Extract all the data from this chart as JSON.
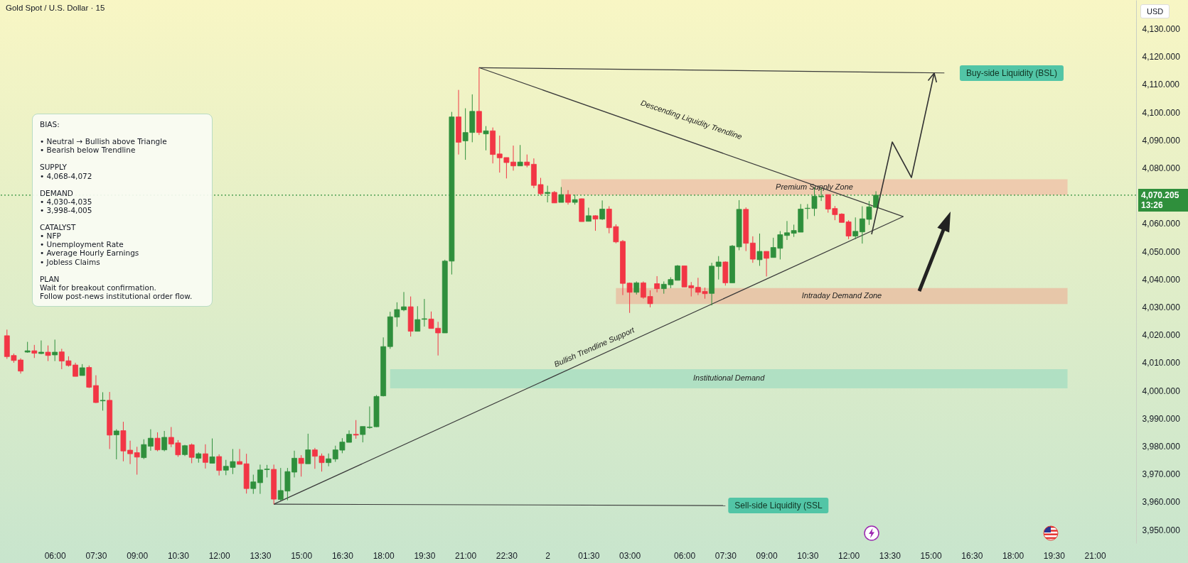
{
  "chart_data": {
    "type": "candlestick",
    "title": "Gold Spot / U.S. Dollar · 15",
    "ylabel": "USD",
    "categories": [
      null,
      null,
      null,
      null,
      null,
      null,
      null,
      "06:00",
      null,
      null,
      null,
      null,
      null,
      "07:30",
      null,
      null,
      null,
      null,
      null,
      "09:00",
      null,
      null,
      null,
      null,
      null,
      "10:30",
      null,
      null,
      null,
      null,
      null,
      "12:00",
      null,
      null,
      null,
      null,
      null,
      "13:30",
      null,
      null,
      null,
      null,
      null,
      "15:00",
      null,
      null,
      null,
      null,
      null,
      "16:30",
      null,
      null,
      null,
      null,
      null,
      "18:00",
      null,
      null,
      null,
      null,
      null,
      "19:30",
      null,
      null,
      null,
      null,
      null,
      "21:00",
      null,
      null,
      null,
      null,
      null,
      "22:30",
      null,
      null,
      null,
      null,
      null,
      "2",
      null,
      null,
      null,
      null,
      null,
      "01:30",
      null,
      null,
      null,
      null,
      null,
      "03:00",
      null,
      null,
      null,
      null,
      null,
      null,
      null,
      "06:00",
      null,
      null,
      null,
      null,
      null,
      "07:30",
      null,
      null,
      null,
      null,
      null,
      "09:00",
      null,
      null,
      null,
      null,
      null,
      "10:30",
      null,
      null,
      null,
      null,
      null,
      "12:00",
      null,
      null,
      null,
      null,
      null,
      "13:30",
      null,
      null,
      null,
      null,
      null,
      "15:00",
      null,
      null,
      null,
      null,
      null,
      "16:30",
      null,
      null,
      null,
      null,
      null,
      "18:00",
      null,
      null,
      null,
      null,
      null,
      "19:30",
      null,
      null,
      null,
      null,
      null,
      "21:00",
      null,
      null,
      null,
      null,
      null
    ],
    "ohlc": [
      [
        4019.7,
        4021.9,
        4011.4,
        4012.2
      ],
      [
        4012.6,
        4013.3,
        4010.0,
        4010.8
      ],
      [
        4011.0,
        4011.6,
        4006.1,
        4007.0
      ],
      [
        4013.8,
        4017.5,
        4013.6,
        4014.3
      ],
      [
        4014.3,
        4016.4,
        4011.7,
        4013.4
      ],
      [
        4013.3,
        4018.0,
        4013.1,
        4013.8
      ],
      [
        4013.8,
        4016.2,
        4010.6,
        4012.6
      ],
      [
        4012.8,
        4018.3,
        4010.6,
        4013.8
      ],
      [
        4013.9,
        4015.0,
        4007.7,
        4010.6
      ],
      [
        4010.7,
        4012.3,
        4008.6,
        4009.0
      ],
      [
        4009.2,
        4010.0,
        4005.1,
        4005.1
      ],
      [
        4005.4,
        4009.5,
        4005.4,
        4008.2
      ],
      [
        4008.3,
        4009.0,
        4000.9,
        4001.2
      ],
      [
        4001.8,
        4005.5,
        3995.5,
        3995.7
      ],
      [
        3996.3,
        3999.4,
        3992.8,
        3996.5
      ],
      [
        3996.5,
        3999.5,
        3979.0,
        3984.0
      ],
      [
        3984.1,
        3986.1,
        3975.3,
        3985.5
      ],
      [
        3985.6,
        3988.8,
        3974.6,
        3978.3
      ],
      [
        3978.6,
        3982.0,
        3973.6,
        3977.3
      ],
      [
        3977.7,
        3979.8,
        3969.8,
        3976.1
      ],
      [
        3975.9,
        3982.5,
        3975.4,
        3980.6
      ],
      [
        3980.0,
        3986.1,
        3978.4,
        3982.9
      ],
      [
        3982.9,
        3985.0,
        3978.2,
        3978.7
      ],
      [
        3978.7,
        3985.5,
        3978.2,
        3983.2
      ],
      [
        3983.2,
        3986.9,
        3979.7,
        3980.8
      ],
      [
        3981.2,
        3982.2,
        3976.2,
        3976.9
      ],
      [
        3977.0,
        3980.5,
        3976.5,
        3980.2
      ],
      [
        3980.5,
        3981.0,
        3973.9,
        3976.0
      ],
      [
        3975.7,
        3977.8,
        3974.1,
        3977.3
      ],
      [
        3977.3,
        3980.7,
        3972.0,
        3974.2
      ],
      [
        3973.9,
        3982.8,
        3973.9,
        3976.2
      ],
      [
        3976.3,
        3977.1,
        3969.5,
        3971.3
      ],
      [
        3971.4,
        3975.1,
        3969.6,
        3972.8
      ],
      [
        3972.4,
        3979.0,
        3970.0,
        3974.5
      ],
      [
        3974.5,
        3979.0,
        3973.5,
        3973.5
      ],
      [
        3973.7,
        3977.3,
        3963.0,
        3964.8
      ],
      [
        3964.8,
        3969.8,
        3962.9,
        3967.2
      ],
      [
        3966.9,
        3973.4,
        3962.9,
        3971.5
      ],
      [
        3971.6,
        3973.3,
        3968.8,
        3971.8
      ],
      [
        3971.7,
        3973.4,
        3959.2,
        3961.0
      ],
      [
        3960.9,
        3972.2,
        3960.5,
        3964.1
      ],
      [
        3963.9,
        3972.2,
        3960.6,
        3970.9
      ],
      [
        3970.7,
        3978.4,
        3968.8,
        3975.7
      ],
      [
        3975.7,
        3976.8,
        3969.1,
        3973.8
      ],
      [
        3973.7,
        3984.5,
        3973.7,
        3978.7
      ],
      [
        3978.7,
        3979.4,
        3971.9,
        3976.4
      ],
      [
        3976.5,
        3977.4,
        3970.9,
        3974.1
      ],
      [
        3974.1,
        3977.4,
        3972.8,
        3975.5
      ],
      [
        3975.4,
        3980.2,
        3974.4,
        3978.7
      ],
      [
        3978.6,
        3982.9,
        3977.5,
        3981.5
      ],
      [
        3981.4,
        3985.7,
        3981.4,
        3984.3
      ],
      [
        3984.3,
        3989.4,
        3982.7,
        3984.0
      ],
      [
        3984.2,
        3987.1,
        3981.4,
        3987.1
      ],
      [
        3986.7,
        3994.3,
        3986.3,
        3986.9
      ],
      [
        3987.0,
        3998.4,
        3986.9,
        3997.9
      ],
      [
        3998.1,
        4019.1,
        3997.9,
        4015.8
      ],
      [
        4015.8,
        4028.3,
        4015.0,
        4026.5
      ],
      [
        4026.4,
        4031.7,
        4022.9,
        4029.1
      ],
      [
        4029.0,
        4035.4,
        4028.5,
        4030.1
      ],
      [
        4030.1,
        4033.8,
        4019.4,
        4021.3
      ],
      [
        4021.3,
        4030.3,
        4021.3,
        4025.5
      ],
      [
        4025.6,
        4032.9,
        4023.0,
        4025.8
      ],
      [
        4025.7,
        4028.4,
        4022.3,
        4022.3
      ],
      [
        4022.4,
        4024.7,
        4012.6,
        4020.7
      ],
      [
        4020.7,
        4047.0,
        4020.7,
        4046.5
      ],
      [
        4046.5,
        4100.1,
        4041.7,
        4098.3
      ],
      [
        4098.3,
        4108.0,
        4084.8,
        4089.2
      ],
      [
        4089.7,
        4101.4,
        4082.9,
        4092.7
      ],
      [
        4092.7,
        4106.4,
        4089.2,
        4100.3
      ],
      [
        4100.3,
        4116.0,
        4091.8,
        4092.7
      ],
      [
        4092.2,
        4095.0,
        4086.3,
        4093.3
      ],
      [
        4093.3,
        4094.5,
        4081.6,
        4084.8
      ],
      [
        4085.0,
        4091.6,
        4078.3,
        4083.6
      ],
      [
        4083.7,
        4083.7,
        4076.2,
        4081.9
      ],
      [
        4082.1,
        4088.0,
        4079.0,
        4080.7
      ],
      [
        4080.7,
        4088.2,
        4080.7,
        4082.1
      ],
      [
        4082.1,
        4084.8,
        4080.2,
        4080.9
      ],
      [
        4081.3,
        4083.4,
        4072.7,
        4073.7
      ],
      [
        4074.0,
        4076.4,
        4070.1,
        4070.7
      ],
      [
        4070.8,
        4073.6,
        4067.6,
        4071.2
      ],
      [
        4071.2,
        4071.7,
        4067.4,
        4067.4
      ],
      [
        4067.6,
        4073.1,
        4067.6,
        4070.4
      ],
      [
        4070.4,
        4072.0,
        4066.8,
        4067.6
      ],
      [
        4067.6,
        4070.4,
        4066.8,
        4068.6
      ],
      [
        4068.9,
        4069.0,
        4060.7,
        4060.7
      ],
      [
        4060.8,
        4065.7,
        4060.8,
        4062.8
      ],
      [
        4062.8,
        4063.0,
        4057.4,
        4061.6
      ],
      [
        4061.6,
        4068.3,
        4061.3,
        4065.2
      ],
      [
        4065.2,
        4066.2,
        4056.5,
        4058.5
      ],
      [
        4058.9,
        4059.7,
        4052.9,
        4053.4
      ],
      [
        4053.6,
        4054.1,
        4034.3,
        4038.5
      ],
      [
        4038.6,
        4038.8,
        4027.9,
        4035.3
      ],
      [
        4035.3,
        4039.2,
        4034.5,
        4038.7
      ],
      [
        4038.7,
        4039.2,
        4033.0,
        4033.5
      ],
      [
        4033.8,
        4036.0,
        4029.9,
        4031.2
      ],
      [
        4038.4,
        4041.1,
        4035.3,
        4036.6
      ],
      [
        4036.6,
        4039.2,
        4034.8,
        4038.2
      ],
      [
        4038.0,
        4040.7,
        4036.8,
        4039.9
      ],
      [
        4039.6,
        4045.1,
        4039.6,
        4044.8
      ],
      [
        4044.8,
        4044.8,
        4037.2,
        4037.2
      ],
      [
        4037.7,
        4039.0,
        4033.8,
        4036.9
      ],
      [
        4037.1,
        4040.5,
        4034.3,
        4035.3
      ],
      [
        4035.6,
        4037.0,
        4033.0,
        4034.8
      ],
      [
        4034.9,
        4045.9,
        4030.6,
        4044.7
      ],
      [
        4044.6,
        4048.3,
        4039.9,
        4046.2
      ],
      [
        4046.2,
        4046.4,
        4037.7,
        4038.7
      ],
      [
        4038.7,
        4052.3,
        4038.7,
        4051.9
      ],
      [
        4051.6,
        4068.4,
        4050.4,
        4065.1
      ],
      [
        4065.1,
        4065.8,
        4050.1,
        4052.9
      ],
      [
        4053.0,
        4055.4,
        4045.9,
        4047.2
      ],
      [
        4047.0,
        4056.4,
        4044.8,
        4050.0
      ],
      [
        4050.0,
        4050.0,
        4041.0,
        4047.5
      ],
      [
        4047.8,
        4054.9,
        4047.8,
        4051.4
      ],
      [
        4051.1,
        4057.3,
        4047.1,
        4056.0
      ],
      [
        4055.7,
        4060.9,
        4054.1,
        4056.7
      ],
      [
        4056.5,
        4059.6,
        4055.2,
        4057.5
      ],
      [
        4056.9,
        4067.0,
        4056.9,
        4065.2
      ],
      [
        4065.4,
        4067.0,
        4061.6,
        4065.5
      ],
      [
        4065.4,
        4073.0,
        4062.7,
        4069.8
      ],
      [
        4069.6,
        4072.9,
        4068.1,
        4069.8
      ],
      [
        4070.4,
        4070.4,
        4063.9,
        4065.2
      ],
      [
        4065.4,
        4066.3,
        4061.2,
        4063.2
      ],
      [
        4063.4,
        4063.7,
        4060.4,
        4060.4
      ],
      [
        4060.6,
        4061.2,
        4054.4,
        4055.5
      ],
      [
        4055.5,
        4062.2,
        4054.4,
        4057.2
      ],
      [
        4057.0,
        4066.2,
        4052.8,
        4061.7
      ],
      [
        4061.5,
        4068.1,
        4059.5,
        4066.0
      ],
      [
        4065.8,
        4071.6,
        4065.8,
        4070.2
      ],
      null,
      null,
      null,
      null,
      null,
      null,
      null,
      null,
      null,
      null,
      null,
      null,
      null,
      null,
      null,
      null,
      null,
      null,
      null,
      null,
      null,
      null,
      null,
      null,
      null,
      null,
      null,
      null,
      null,
      null,
      null,
      null,
      null,
      null,
      null,
      null,
      null
    ],
    "colors": [
      "#f23645",
      "#f23645",
      "#f23645",
      "#2f8f3c",
      "#f23645",
      "#2f8f3c",
      "#f23645",
      "#2f8f3c",
      "#f23645",
      "#f23645",
      "#f23645",
      "#2f8f3c",
      "#f23645",
      "#f23645",
      "#2f8f3c",
      "#f23645",
      "#2f8f3c",
      "#f23645",
      "#f23645",
      "#f23645",
      "#2f8f3c",
      "#2f8f3c",
      "#f23645",
      "#2f8f3c",
      "#f23645",
      "#f23645",
      "#2f8f3c",
      "#f23645",
      "#2f8f3c",
      "#f23645",
      "#2f8f3c",
      "#f23645",
      "#2f8f3c",
      "#2f8f3c",
      "#f23645",
      "#f23645",
      "#2f8f3c",
      "#2f8f3c",
      "#2f8f3c",
      "#f23645",
      "#2f8f3c",
      "#2f8f3c",
      "#2f8f3c",
      "#f23645",
      "#2f8f3c",
      "#f23645",
      "#f23645",
      "#2f8f3c",
      "#2f8f3c",
      "#2f8f3c",
      "#2f8f3c",
      "#f23645",
      "#2f8f3c",
      "#2f8f3c",
      "#2f8f3c",
      "#2f8f3c",
      "#2f8f3c",
      "#2f8f3c",
      "#2f8f3c",
      "#f23645",
      "#2f8f3c",
      "#2f8f3c",
      "#f23645",
      "#f23645",
      "#2f8f3c",
      "#2f8f3c",
      "#f23645",
      "#2f8f3c",
      "#2f8f3c",
      "#f23645",
      "#2f8f3c",
      "#f23645",
      "#f23645",
      "#f23645",
      "#f23645",
      "#2f8f3c",
      "#f23645",
      "#f23645",
      "#f23645",
      "#2f8f3c",
      "#f23645",
      "#2f8f3c",
      "#f23645",
      "#2f8f3c",
      "#f23645",
      "#2f8f3c",
      "#f23645",
      "#2f8f3c",
      "#f23645",
      "#f23645",
      "#f23645",
      "#f23645",
      "#2f8f3c",
      "#f23645",
      "#f23645",
      "#f23645",
      "#2f8f3c",
      "#2f8f3c",
      "#2f8f3c",
      "#f23645",
      "#f23645",
      "#f23645",
      "#f23645",
      "#2f8f3c",
      "#2f8f3c",
      "#f23645",
      "#2f8f3c",
      "#2f8f3c",
      "#f23645",
      "#f23645",
      "#2f8f3c",
      "#f23645",
      "#2f8f3c",
      "#2f8f3c",
      "#2f8f3c",
      "#2f8f3c",
      "#2f8f3c",
      "#2f8f3c",
      "#2f8f3c",
      "#2f8f3c",
      "#f23645",
      "#f23645",
      "#f23645",
      "#f23645",
      "#2f8f3c",
      "#2f8f3c",
      "#2f8f3c",
      "#2f8f3c",
      null,
      null,
      null,
      null,
      null,
      null,
      null,
      null,
      null,
      null,
      null,
      null,
      null,
      null,
      null,
      null,
      null,
      null,
      null,
      null,
      null,
      null,
      null,
      null,
      null,
      null,
      null,
      null,
      null,
      null,
      null,
      null,
      null,
      null,
      null,
      null,
      null
    ],
    "series": [
      {
        "type": "line",
        "color": "#3a3a3a",
        "values": [
          null,
          null,
          null,
          null,
          null,
          null,
          null,
          null,
          null,
          null,
          null,
          null,
          null,
          null,
          null,
          null,
          null,
          null,
          null,
          null,
          null,
          null,
          null,
          null,
          null,
          null,
          null,
          null,
          null,
          null,
          null,
          null,
          null,
          null,
          null,
          null,
          null,
          null,
          null,
          null,
          null,
          null,
          null,
          null,
          null,
          null,
          null,
          null,
          null,
          null,
          null,
          null,
          null,
          null,
          null,
          null,
          null,
          null,
          null,
          null,
          null,
          null,
          null,
          null,
          null,
          null,
          null,
          null,
          null,
          4116.0,
          null,
          null,
          null,
          null,
          null,
          null,
          null,
          null,
          null,
          null,
          null,
          null,
          null,
          null,
          null,
          null,
          null,
          null,
          null,
          null,
          null,
          null,
          null,
          null,
          null,
          null,
          null,
          null,
          null,
          null,
          null,
          null,
          null,
          null,
          null,
          null,
          null,
          null,
          null,
          null,
          null,
          null,
          null,
          null,
          null,
          null,
          null,
          null,
          null,
          null,
          null,
          null,
          null,
          null,
          null,
          null,
          null,
          null,
          null,
          null,
          null,
          4062.5,
          null,
          null,
          null,
          null,
          null,
          null,
          null,
          null,
          null,
          null,
          null,
          null,
          null,
          null,
          null,
          null,
          null,
          null,
          null,
          null,
          null,
          null,
          null,
          null,
          null,
          null,
          null,
          null,
          null,
          null,
          null,
          null,
          null
        ]
      },
      {
        "type": "line",
        "color": "#3a3a3a",
        "values": [
          null,
          null,
          null,
          null,
          null,
          null,
          null,
          null,
          null,
          null,
          null,
          null,
          null,
          null,
          null,
          null,
          null,
          null,
          null,
          null,
          null,
          null,
          null,
          null,
          null,
          null,
          null,
          null,
          null,
          null,
          null,
          null,
          null,
          null,
          null,
          null,
          null,
          null,
          null,
          3959.2,
          null,
          null,
          null,
          null,
          null,
          null,
          null,
          null,
          null,
          null,
          null,
          null,
          null,
          null,
          null,
          null,
          null,
          null,
          null,
          null,
          null,
          null,
          null,
          null,
          null,
          null,
          null,
          null,
          null,
          null,
          null,
          null,
          null,
          null,
          null,
          null,
          null,
          null,
          null,
          null,
          null,
          null,
          null,
          null,
          null,
          null,
          null,
          null,
          null,
          null,
          null,
          null,
          null,
          null,
          null,
          null,
          null,
          null,
          null,
          null,
          null,
          null,
          null,
          null,
          null,
          null,
          null,
          null,
          null,
          null,
          null,
          null,
          null,
          null,
          null,
          null,
          null,
          null,
          null,
          null,
          null,
          null,
          null,
          null,
          null,
          null,
          null,
          null,
          null,
          null,
          null,
          4062.5,
          null,
          null,
          null,
          null,
          null,
          null,
          null,
          null,
          null,
          null,
          null,
          null,
          null,
          null,
          null,
          null,
          null,
          null,
          null,
          null,
          null,
          null,
          null,
          null,
          null,
          null,
          null,
          null,
          null,
          null,
          null,
          null,
          null
        ]
      },
      {
        "type": "line",
        "color": "#3a3a3a",
        "values": [
          null,
          null,
          null,
          null,
          null,
          null,
          null,
          null,
          null,
          null,
          null,
          null,
          null,
          null,
          null,
          null,
          null,
          null,
          null,
          null,
          null,
          null,
          null,
          null,
          null,
          null,
          null,
          null,
          null,
          null,
          null,
          null,
          null,
          null,
          null,
          null,
          null,
          null,
          null,
          null,
          null,
          null,
          null,
          null,
          null,
          null,
          null,
          null,
          null,
          null,
          null,
          null,
          null,
          null,
          null,
          null,
          null,
          null,
          null,
          null,
          null,
          null,
          null,
          null,
          null,
          null,
          null,
          null,
          null,
          4116.0,
          null,
          null,
          null,
          null,
          null,
          null,
          null,
          null,
          null,
          null,
          null,
          null,
          null,
          null,
          null,
          null,
          null,
          null,
          null,
          null,
          null,
          null,
          null,
          null,
          null,
          null,
          null,
          null,
          null,
          null,
          null,
          null,
          null,
          null,
          null,
          null,
          null,
          null,
          null,
          null,
          null,
          null,
          null,
          null,
          null,
          null,
          null,
          null,
          null,
          null,
          null,
          null,
          null,
          null,
          null,
          null,
          null,
          null,
          null,
          null,
          null,
          null,
          null,
          null,
          null,
          null,
          null,
          4114.1,
          null,
          null,
          null,
          null,
          null,
          null,
          null,
          null,
          null,
          null,
          null,
          null,
          null,
          null,
          null,
          null,
          null,
          null,
          null,
          null,
          null,
          null,
          null,
          null,
          null,
          null,
          null
        ]
      },
      {
        "type": "line",
        "color": "#3a3a3a",
        "values": [
          null,
          null,
          null,
          null,
          null,
          null,
          null,
          null,
          null,
          null,
          null,
          null,
          null,
          null,
          null,
          null,
          null,
          null,
          null,
          null,
          null,
          null,
          null,
          null,
          null,
          null,
          null,
          null,
          null,
          null,
          null,
          null,
          null,
          null,
          null,
          null,
          null,
          null,
          null,
          3959.2,
          null,
          null,
          null,
          null,
          null,
          null,
          null,
          null,
          null,
          null,
          null,
          null,
          null,
          null,
          null,
          null,
          null,
          null,
          null,
          null,
          null,
          null,
          null,
          null,
          null,
          null,
          null,
          null,
          null,
          null,
          null,
          null,
          null,
          null,
          null,
          null,
          null,
          null,
          null,
          null,
          null,
          null,
          null,
          null,
          null,
          null,
          null,
          null,
          null,
          null,
          null,
          null,
          null,
          null,
          null,
          null,
          null,
          null,
          null,
          null,
          null,
          null,
          null,
          null,
          null,
          3958.7,
          null,
          null,
          null,
          null,
          null,
          null,
          null,
          null,
          null,
          null,
          null,
          null,
          null,
          null,
          null,
          null,
          null,
          null,
          null,
          null,
          null,
          null,
          null,
          null,
          null,
          null,
          null,
          null,
          null,
          null,
          null,
          null,
          null,
          null,
          null,
          null,
          null,
          null,
          null,
          null,
          null,
          null,
          null,
          null,
          null,
          null,
          null,
          null,
          null,
          null,
          null,
          null,
          null,
          null,
          null,
          null,
          null,
          null,
          null
        ]
      }
    ],
    "ylim": [
      3945.2,
      4140.3
    ],
    "yticks": [
      {
        "value": 3950,
        "label": "3,950.000"
      },
      {
        "value": 3960,
        "label": "3,960.000"
      },
      {
        "value": 3970,
        "label": "3,970.000"
      },
      {
        "value": 3980,
        "label": "3,980.000"
      },
      {
        "value": 3990,
        "label": "3,990.000"
      },
      {
        "value": 4000,
        "label": "4,000.000"
      },
      {
        "value": 4010,
        "label": "4,010.000"
      },
      {
        "value": 4020,
        "label": "4,020.000"
      },
      {
        "value": 4030,
        "label": "4,030.000"
      },
      {
        "value": 4040,
        "label": "4,040.000"
      },
      {
        "value": 4050,
        "label": "4,050.000"
      },
      {
        "value": 4060,
        "label": "4,060.000"
      },
      {
        "value": 4080,
        "label": "4,080.000"
      },
      {
        "value": 4090,
        "label": "4,090.000"
      },
      {
        "value": 4100,
        "label": "4,100.000"
      },
      {
        "value": 4110,
        "label": "4,110.000"
      },
      {
        "value": 4120,
        "label": "4,120.000"
      },
      {
        "value": 4130,
        "label": "4,130.000"
      }
    ],
    "ref_lines": [
      {
        "axis": "y",
        "value": 4070.205,
        "label": "4,070.205",
        "color": "#2f8f3c",
        "line_style": "dotted"
      }
    ],
    "bands": [
      {
        "axis": "y",
        "from": 4070.2,
        "to": 4075.9,
        "label": "Premium Supply Zone",
        "color": "#efc4a9"
      },
      {
        "axis": "y",
        "from": 4031.1,
        "to": 4036.8,
        "label": "Intraday Demand Zone",
        "color": "#e9c0a3"
      },
      {
        "axis": "y",
        "from": 4000.8,
        "to": 4007.7,
        "label": "Institutional Demand",
        "color": "#a9dec2"
      }
    ],
    "annotations": [
      "BIAS:\n\n• Neutral → Bullish above Triangle\n• Bearish below Trendline\n\nSUPPLY\n• 4,068-4,072\n\nDEMAND\n• 4,030-4,035\n• 3,998-4,005\n\nCATALYST\n• NFP\n• Unemployment Rate\n• Average Hourly Earnings\n• Jobless Claims\n\nPLAN\nWait for breakout confirmation.\nFollow post-news institutional order flow.",
      "13:26",
      "Descending Liquidity Trendline",
      "Bullish Trendline Support",
      "Buy-side Liquidity (BSL)",
      "Sell-side Liquidity (SSL"
    ]
  }
}
